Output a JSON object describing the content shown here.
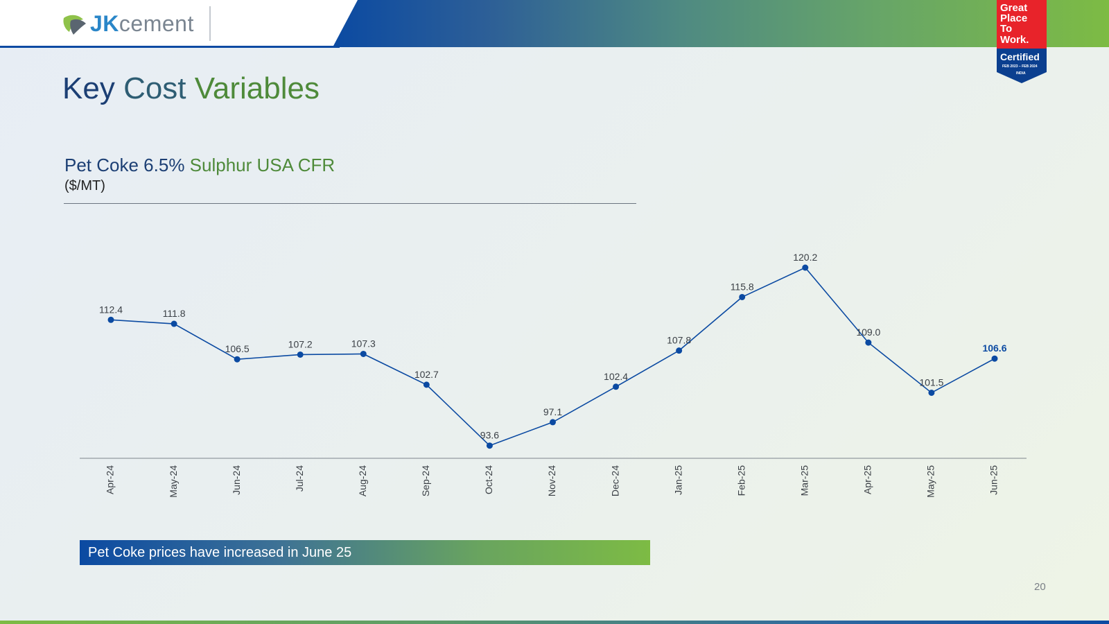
{
  "header": {
    "logo_prefix": "JK",
    "logo_suffix": "cement",
    "badge": {
      "line1": "Great",
      "line2": "Place",
      "line3": "To",
      "line4": "Work.",
      "certified": "Certified",
      "period": "FEB 2023 – FEB 2024",
      "country": "INDIA"
    }
  },
  "title": {
    "part1": "Key",
    "part2": "Cost",
    "part3": "Variables"
  },
  "subtitle": {
    "part1": "Pet Coke 6.5%",
    "part2": "Sulphur USA CFR"
  },
  "unit": "($/MT)",
  "callout": "Pet Coke prices have increased in June 25",
  "page_number": "20",
  "colors": {
    "line": "#0b4aa2",
    "label": "#3a3f45",
    "highlight": "#0b4aa2",
    "title_blue": "#1c3f74",
    "title_green": "#4e8a3a"
  },
  "chart_data": {
    "type": "line",
    "categories": [
      "Apr-24",
      "May-24",
      "Jun-24",
      "Jul-24",
      "Aug-24",
      "Sep-24",
      "Oct-24",
      "Nov-24",
      "Dec-24",
      "Jan-25",
      "Feb-25",
      "Mar-25",
      "Apr-25",
      "May-25",
      "Jun-25"
    ],
    "series": [
      {
        "values": [
          112.4,
          111.8,
          106.5,
          107.2,
          107.3,
          102.7,
          93.6,
          97.1,
          102.4,
          107.8,
          115.8,
          120.2,
          109.0,
          101.5,
          106.6
        ],
        "labels": [
          "112.4",
          "111.8",
          "106.5",
          "107.2",
          "107.3",
          "102.7",
          "93.6",
          "97.1",
          "102.4",
          "107.8",
          "115.8",
          "120.2",
          "109.0",
          "101.5",
          "106.6"
        ]
      }
    ],
    "highlight_last": true,
    "drop_lines": true,
    "grid": false,
    "title": "Pet Coke 6.5% Sulphur USA CFR",
    "ylabel": "($/MT)",
    "xlabel": ""
  }
}
